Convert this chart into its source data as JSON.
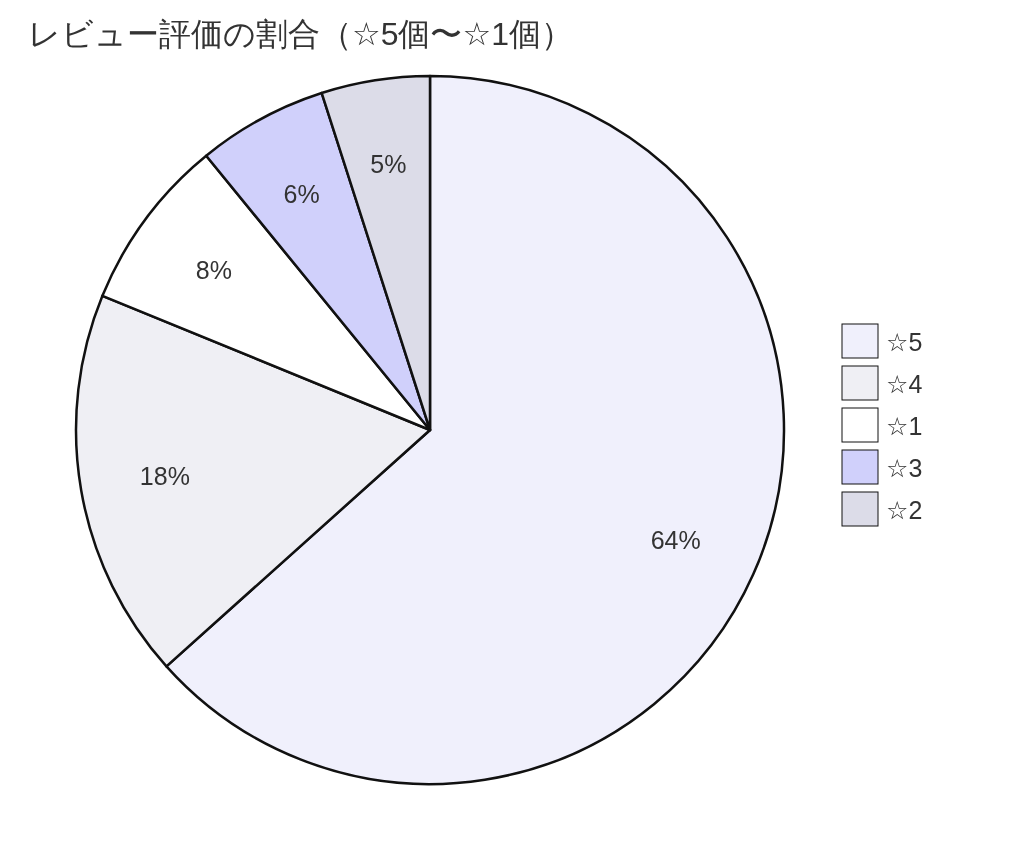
{
  "chart_data": {
    "type": "pie",
    "title": "レビュー評価の割合（☆5個〜☆1個）",
    "categories": [
      "☆5",
      "☆4",
      "☆1",
      "☆3",
      "☆2"
    ],
    "values": [
      64,
      18,
      8,
      6,
      5
    ],
    "value_labels": [
      "64%",
      "18%",
      "8%",
      "6%",
      "5%"
    ],
    "colors": [
      "#f0f0fc",
      "#efeff4",
      "#ffffff",
      "#d0d0fb",
      "#dcdce8"
    ],
    "legend": "right"
  }
}
